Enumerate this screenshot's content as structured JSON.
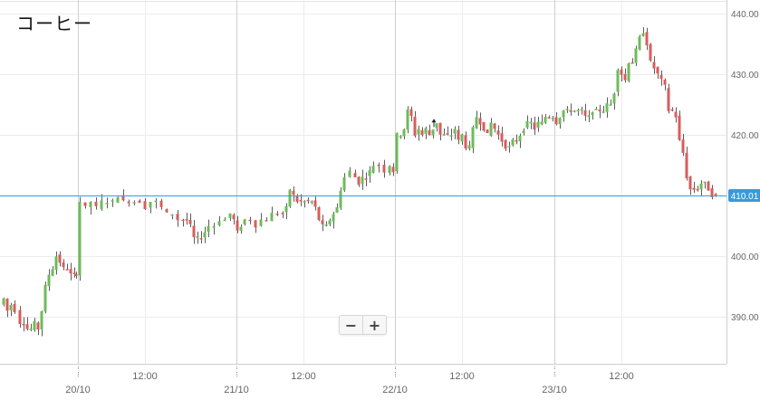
{
  "chart_data": {
    "type": "candlestick",
    "title": "コーヒー",
    "ylim": [
      382,
      441
    ],
    "y_ticks": [
      {
        "value": 440,
        "label": "440.00"
      },
      {
        "value": 430,
        "label": "430.00"
      },
      {
        "value": 420,
        "label": "420.00"
      },
      {
        "value": 400,
        "label": "400.00"
      },
      {
        "value": 390,
        "label": "390.00"
      }
    ],
    "x_ticks": [
      {
        "label": "20/10",
        "day_boundary": true
      },
      {
        "label": "12:00",
        "day_boundary": false
      },
      {
        "label": "21/10",
        "day_boundary": true
      },
      {
        "label": "12:00",
        "day_boundary": false
      },
      {
        "label": "22/10",
        "day_boundary": true
      },
      {
        "label": "12:00",
        "day_boundary": false
      },
      {
        "label": "23/10",
        "day_boundary": true
      },
      {
        "label": "12:00",
        "day_boundary": false
      }
    ],
    "current_price": {
      "value": 410.0,
      "label": "410.01",
      "color": "#3a9ad9"
    },
    "colors": {
      "up": "#6dbb5a",
      "down": "#d95c5c",
      "grid": "#ececec",
      "axis_text": "#666666",
      "day_line": "#cfcfcf"
    },
    "x_keypoints": [
      0,
      86,
      261,
      436,
      612,
      790
    ],
    "keyprice_path": [
      [
        0,
        392
      ],
      [
        4,
        393
      ],
      [
        8,
        391
      ],
      [
        12,
        392
      ],
      [
        16,
        391
      ],
      [
        22,
        389
      ],
      [
        26,
        389
      ],
      [
        30,
        388
      ],
      [
        34,
        388
      ],
      [
        38,
        389
      ],
      [
        42,
        388
      ],
      [
        46,
        391
      ],
      [
        50,
        395
      ],
      [
        54,
        397
      ],
      [
        58,
        398
      ],
      [
        62,
        400
      ],
      [
        66,
        399
      ],
      [
        70,
        398
      ],
      [
        74,
        398
      ],
      [
        78,
        397
      ],
      [
        82,
        397
      ],
      [
        84,
        397
      ],
      [
        88,
        409
      ],
      [
        94,
        408
      ],
      [
        100,
        409
      ],
      [
        106,
        408
      ],
      [
        112,
        409
      ],
      [
        118,
        409
      ],
      [
        124,
        409
      ],
      [
        130,
        410
      ],
      [
        136,
        409
      ],
      [
        142,
        409
      ],
      [
        148,
        409
      ],
      [
        154,
        409
      ],
      [
        160,
        408
      ],
      [
        166,
        409
      ],
      [
        172,
        409
      ],
      [
        178,
        408
      ],
      [
        184,
        407
      ],
      [
        190,
        407
      ],
      [
        196,
        406
      ],
      [
        202,
        406
      ],
      [
        206,
        406
      ],
      [
        210,
        405
      ],
      [
        214,
        403
      ],
      [
        218,
        403
      ],
      [
        222,
        403
      ],
      [
        226,
        404
      ],
      [
        230,
        405
      ],
      [
        236,
        405
      ],
      [
        242,
        406
      ],
      [
        248,
        406
      ],
      [
        254,
        407
      ],
      [
        258,
        406
      ],
      [
        262,
        404
      ],
      [
        266,
        405
      ],
      [
        270,
        406
      ],
      [
        276,
        406
      ],
      [
        282,
        405
      ],
      [
        288,
        406
      ],
      [
        294,
        406
      ],
      [
        300,
        407
      ],
      [
        306,
        407
      ],
      [
        312,
        407
      ],
      [
        316,
        408
      ],
      [
        320,
        411
      ],
      [
        324,
        410
      ],
      [
        328,
        409
      ],
      [
        332,
        409
      ],
      [
        336,
        409
      ],
      [
        340,
        409
      ],
      [
        344,
        409
      ],
      [
        348,
        408
      ],
      [
        352,
        406
      ],
      [
        356,
        405
      ],
      [
        360,
        405
      ],
      [
        364,
        406
      ],
      [
        368,
        407
      ],
      [
        372,
        408
      ],
      [
        376,
        411
      ],
      [
        380,
        413
      ],
      [
        386,
        414
      ],
      [
        392,
        413
      ],
      [
        396,
        412
      ],
      [
        400,
        413
      ],
      [
        404,
        413
      ],
      [
        408,
        414
      ],
      [
        412,
        415
      ],
      [
        418,
        415
      ],
      [
        424,
        414
      ],
      [
        430,
        415
      ],
      [
        434,
        414
      ],
      [
        438,
        420
      ],
      [
        442,
        420
      ],
      [
        446,
        421
      ],
      [
        450,
        424
      ],
      [
        454,
        423
      ],
      [
        458,
        420
      ],
      [
        462,
        421
      ],
      [
        466,
        420
      ],
      [
        470,
        421
      ],
      [
        474,
        420
      ],
      [
        478,
        421
      ],
      [
        482,
        422
      ],
      [
        486,
        420
      ],
      [
        490,
        420
      ],
      [
        494,
        420
      ],
      [
        498,
        420
      ],
      [
        502,
        421
      ],
      [
        506,
        419
      ],
      [
        510,
        420
      ],
      [
        514,
        418
      ],
      [
        518,
        418
      ],
      [
        522,
        421
      ],
      [
        526,
        423
      ],
      [
        530,
        422
      ],
      [
        534,
        421
      ],
      [
        538,
        420
      ],
      [
        542,
        422
      ],
      [
        546,
        421
      ],
      [
        550,
        420
      ],
      [
        554,
        419
      ],
      [
        558,
        418
      ],
      [
        562,
        418
      ],
      [
        566,
        419
      ],
      [
        570,
        419
      ],
      [
        574,
        420
      ],
      [
        578,
        421
      ],
      [
        582,
        422
      ],
      [
        586,
        422
      ],
      [
        590,
        421
      ],
      [
        594,
        422
      ],
      [
        598,
        422
      ],
      [
        602,
        423
      ],
      [
        606,
        423
      ],
      [
        610,
        423
      ],
      [
        614,
        422
      ],
      [
        618,
        423
      ],
      [
        622,
        424
      ],
      [
        626,
        424
      ],
      [
        630,
        424
      ],
      [
        634,
        424
      ],
      [
        638,
        424
      ],
      [
        642,
        424
      ],
      [
        646,
        423
      ],
      [
        650,
        423
      ],
      [
        654,
        424
      ],
      [
        658,
        424
      ],
      [
        662,
        424
      ],
      [
        666,
        424
      ],
      [
        670,
        425
      ],
      [
        674,
        425
      ],
      [
        678,
        427
      ],
      [
        682,
        431
      ],
      [
        686,
        430
      ],
      [
        690,
        429
      ],
      [
        694,
        432
      ],
      [
        698,
        432
      ],
      [
        702,
        434
      ],
      [
        706,
        436
      ],
      [
        710,
        437
      ],
      [
        714,
        435
      ],
      [
        718,
        432
      ],
      [
        722,
        431
      ],
      [
        726,
        430
      ],
      [
        730,
        429
      ],
      [
        734,
        428
      ],
      [
        738,
        424
      ],
      [
        742,
        424
      ],
      [
        746,
        423
      ],
      [
        750,
        419
      ],
      [
        754,
        417
      ],
      [
        758,
        413
      ],
      [
        762,
        411
      ],
      [
        766,
        411
      ],
      [
        770,
        411
      ],
      [
        774,
        412
      ],
      [
        778,
        412
      ],
      [
        782,
        411
      ],
      [
        786,
        410
      ],
      [
        790,
        410
      ]
    ]
  }
}
